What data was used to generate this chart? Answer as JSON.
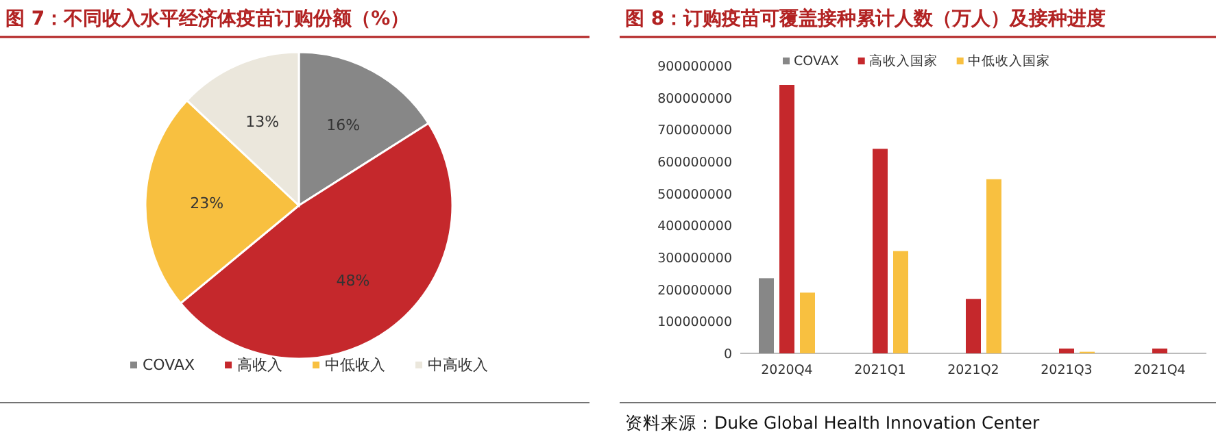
{
  "chart_data": [
    {
      "type": "pie",
      "title": "图 7：不同收入水平经济体疫苗订购份额（%）",
      "categories": [
        "COVAX",
        "高收入",
        "中低收入",
        "中高收入"
      ],
      "values": [
        16,
        48,
        23,
        13
      ],
      "colors": [
        "#878787",
        "#c5282c",
        "#f8c040",
        "#ebe7dc"
      ],
      "value_labels": [
        "16%",
        "48%",
        "23%",
        "13%"
      ],
      "legend": "bottom"
    },
    {
      "type": "bar",
      "title": "图 8：订购疫苗可覆盖接种累计人数（万人）及接种进度",
      "categories": [
        "2020Q4",
        "2021Q1",
        "2021Q2",
        "2021Q3",
        "2021Q4"
      ],
      "series": [
        {
          "name": "COVAX",
          "color": "#878787",
          "values": [
            235000000,
            null,
            null,
            null,
            null
          ]
        },
        {
          "name": "高收入国家",
          "color": "#c5282c",
          "values": [
            840000000,
            640000000,
            170000000,
            15000000,
            15000000
          ]
        },
        {
          "name": "中低收入国家",
          "color": "#f8c040",
          "values": [
            190000000,
            320000000,
            545000000,
            5000000,
            null
          ]
        }
      ],
      "ylim": [
        0,
        900000000
      ],
      "yticks": [
        0,
        100000000,
        200000000,
        300000000,
        400000000,
        500000000,
        600000000,
        700000000,
        800000000,
        900000000
      ],
      "legend": "top left",
      "annotations": [
        "资料来源：Duke Global Health Innovation Center"
      ]
    }
  ]
}
